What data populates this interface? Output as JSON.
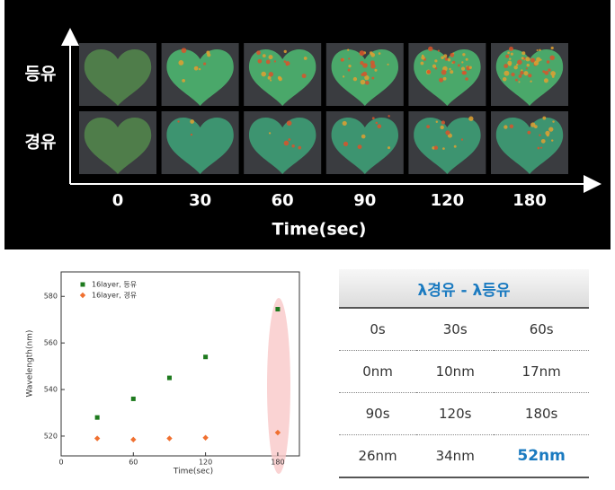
{
  "image_grid": {
    "row_labels": [
      "등유",
      "경유"
    ],
    "column_labels": [
      "0",
      "30",
      "60",
      "90",
      "120",
      "180"
    ],
    "xlabel": "Time(sec)"
  },
  "chart_data": {
    "type": "scatter",
    "xlabel": "Time(sec)",
    "ylabel": "Wavelength(nm)",
    "xlim": [
      0,
      198
    ],
    "ylim": [
      511.5,
      590.5
    ],
    "xticks": [
      0,
      60,
      120,
      180
    ],
    "yticks": [
      520,
      540,
      560,
      580
    ],
    "series": [
      {
        "name": "16layer, 등유",
        "color": "#1e7a1e",
        "marker": "square",
        "x": [
          30,
          60,
          90,
          120,
          180
        ],
        "values": [
          528,
          536,
          545,
          554,
          574.5
        ]
      },
      {
        "name": "16layer, 경유",
        "color": "#f07030",
        "marker": "diamond",
        "x": [
          30,
          60,
          90,
          120,
          180
        ],
        "values": [
          519,
          518.5,
          519,
          519.3,
          521.5
        ]
      }
    ]
  },
  "table": {
    "title": "λ경유 - λ등유",
    "rows": [
      [
        "0s",
        "30s",
        "60s"
      ],
      [
        "0nm",
        "10nm",
        "17nm"
      ],
      [
        "90s",
        "120s",
        "180s"
      ],
      [
        "26nm",
        "34nm",
        "52nm"
      ]
    ]
  }
}
